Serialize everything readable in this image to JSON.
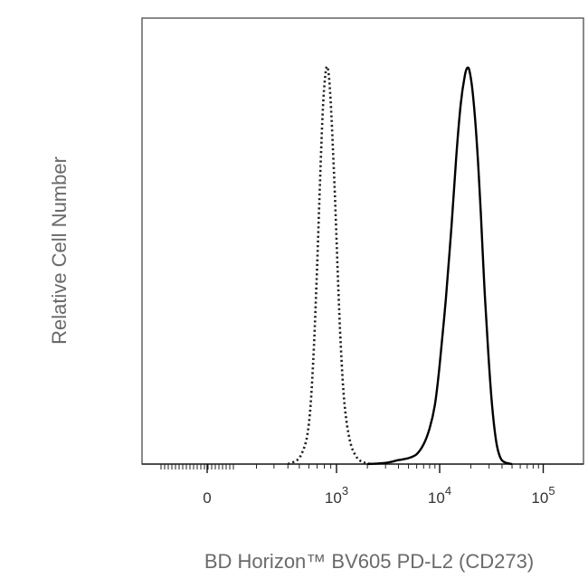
{
  "chart_data": {
    "type": "line",
    "title": "",
    "xlabel": "BD Horizon™ BV605 PD-L2 (CD273)",
    "ylabel": "Relative Cell Number",
    "xscale": "biexponential",
    "grid": false,
    "legend": "none",
    "x_ticks": [
      {
        "value": 0,
        "base": "0",
        "exp": ""
      },
      {
        "value": 1000,
        "base": "10",
        "exp": "3"
      },
      {
        "value": 10000,
        "base": "10",
        "exp": "4"
      },
      {
        "value": 100000,
        "base": "10",
        "exp": "5"
      }
    ],
    "ylim": [
      0,
      100
    ],
    "series": [
      {
        "style": "dotted",
        "color": "#222222",
        "points": [
          [
            400,
            0
          ],
          [
            480,
            1
          ],
          [
            530,
            3
          ],
          [
            580,
            7
          ],
          [
            620,
            15
          ],
          [
            660,
            30
          ],
          [
            700,
            50
          ],
          [
            740,
            72
          ],
          [
            780,
            90
          ],
          [
            820,
            99
          ],
          [
            850,
            100
          ],
          [
            880,
            96
          ],
          [
            920,
            85
          ],
          [
            970,
            68
          ],
          [
            1030,
            48
          ],
          [
            1100,
            30
          ],
          [
            1200,
            15
          ],
          [
            1350,
            6
          ],
          [
            1550,
            2
          ],
          [
            1800,
            0.5
          ],
          [
            2200,
            0
          ]
        ]
      },
      {
        "style": "solid",
        "color": "#000000",
        "points": [
          [
            2000,
            0
          ],
          [
            3000,
            0.3
          ],
          [
            4000,
            1
          ],
          [
            5000,
            1.5
          ],
          [
            6000,
            2.5
          ],
          [
            7000,
            5
          ],
          [
            8000,
            9
          ],
          [
            9000,
            15
          ],
          [
            10000,
            25
          ],
          [
            11500,
            42
          ],
          [
            13000,
            60
          ],
          [
            14500,
            78
          ],
          [
            16000,
            91
          ],
          [
            17500,
            98
          ],
          [
            18500,
            100
          ],
          [
            19500,
            99
          ],
          [
            21000,
            93
          ],
          [
            23000,
            80
          ],
          [
            25000,
            63
          ],
          [
            27000,
            45
          ],
          [
            29500,
            28
          ],
          [
            32000,
            15
          ],
          [
            35000,
            6
          ],
          [
            38000,
            2
          ],
          [
            42000,
            0.5
          ],
          [
            50000,
            0
          ]
        ]
      }
    ]
  }
}
